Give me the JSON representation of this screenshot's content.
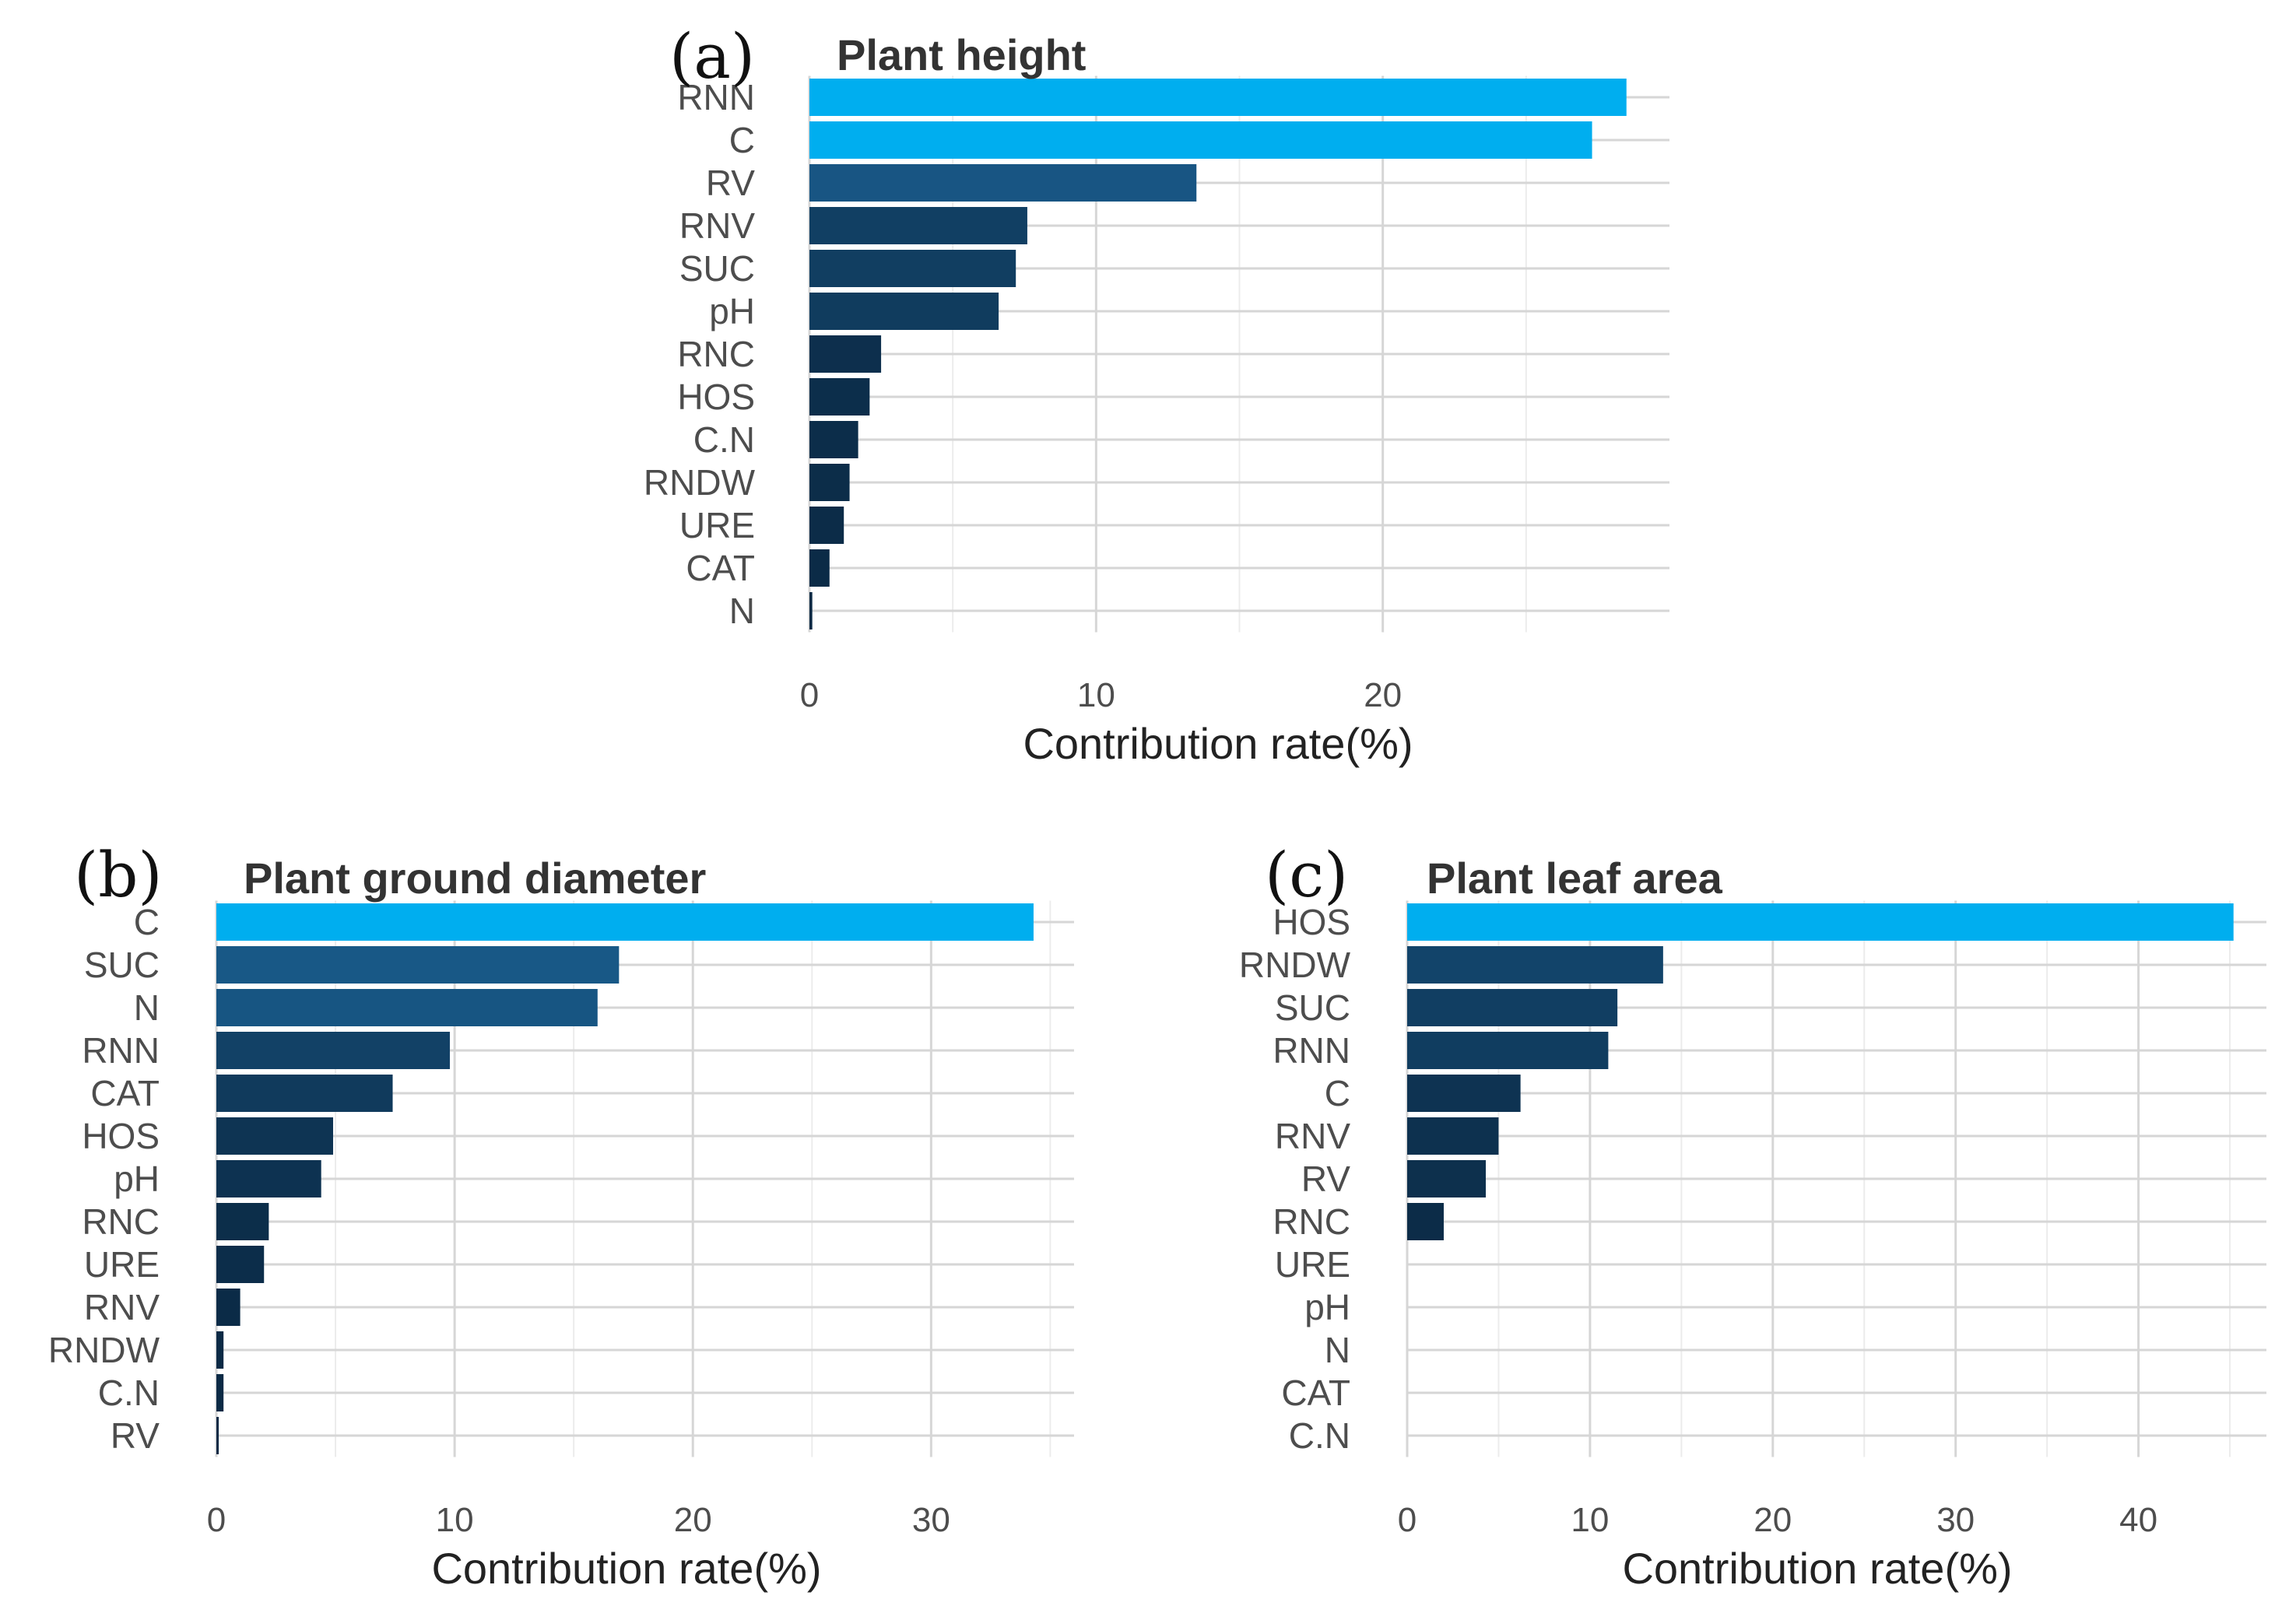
{
  "chart_data": [
    {
      "type": "bar",
      "orientation": "horizontal",
      "panel_label": "(a)",
      "title": "Plant height",
      "xlabel": "Contribution rate(%)",
      "ylabel": "",
      "categories": [
        "RNN",
        "C",
        "RV",
        "RNV",
        "SUC",
        "pH",
        "RNC",
        "HOS",
        "C.N",
        "RNDW",
        "URE",
        "CAT",
        "N"
      ],
      "values": [
        28.5,
        27.3,
        13.5,
        7.6,
        7.2,
        6.6,
        2.5,
        2.1,
        1.7,
        1.4,
        1.2,
        0.7,
        0.1
      ],
      "xlim": [
        0,
        30
      ],
      "xticks": [
        0,
        10,
        20
      ],
      "grid": true
    },
    {
      "type": "bar",
      "orientation": "horizontal",
      "panel_label": "(b)",
      "title": "Plant ground diameter",
      "xlabel": "Contribution rate(%)",
      "ylabel": "",
      "categories": [
        "C",
        "SUC",
        "N",
        "RNN",
        "CAT",
        "HOS",
        "pH",
        "RNC",
        "URE",
        "RNV",
        "RNDW",
        "C.N",
        "RV"
      ],
      "values": [
        34.3,
        16.9,
        16.0,
        9.8,
        7.4,
        4.9,
        4.4,
        2.2,
        2.0,
        1.0,
        0.3,
        0.3,
        0.1
      ],
      "xlim": [
        0,
        36
      ],
      "xticks": [
        0,
        10,
        20,
        30
      ],
      "grid": true
    },
    {
      "type": "bar",
      "orientation": "horizontal",
      "panel_label": "(c)",
      "title": "Plant leaf area",
      "xlabel": "Contribution rate(%)",
      "ylabel": "",
      "categories": [
        "HOS",
        "RNDW",
        "SUC",
        "RNN",
        "C",
        "RNV",
        "RV",
        "RNC",
        "URE",
        "pH",
        "N",
        "CAT",
        "C.N"
      ],
      "values": [
        45.2,
        14.0,
        11.5,
        11.0,
        6.2,
        5.0,
        4.3,
        2.0,
        0,
        0,
        0,
        0,
        0
      ],
      "xlim": [
        0,
        47
      ],
      "xticks": [
        0,
        10,
        20,
        30,
        40
      ],
      "grid": true
    }
  ],
  "colors": {
    "high": "#00aeef",
    "low": "#0b2a45",
    "grid_major": "#d6d6d6",
    "grid_minor": "#ececec"
  }
}
